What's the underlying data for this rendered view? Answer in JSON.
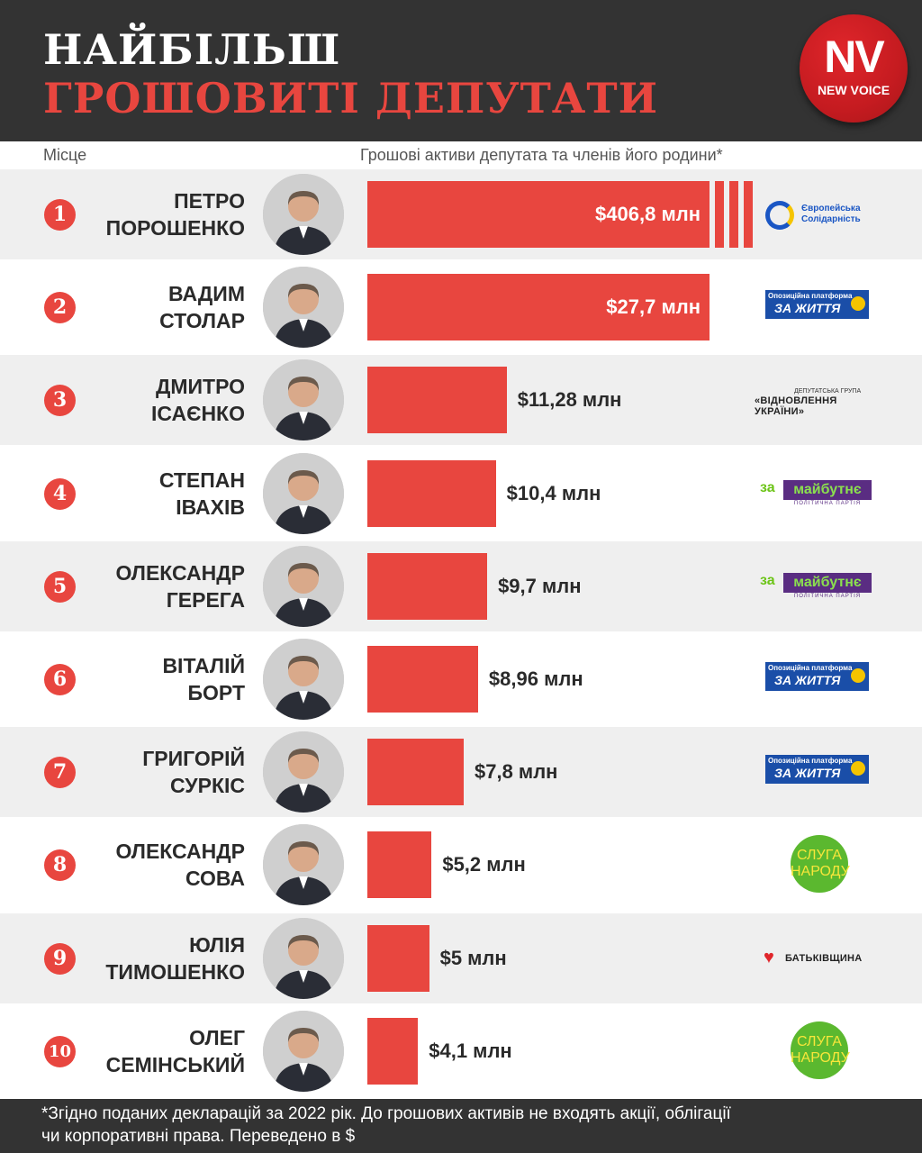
{
  "header": {
    "title_line1": "НАЙБІЛЬШ",
    "title_line2": "ГРОШОВИТІ ДЕПУТАТИ",
    "logo_main": "NV",
    "logo_sub": "NEW VOICE"
  },
  "columns": {
    "place": "Місце",
    "assets": "Грошові активи депутата та членів його родини*"
  },
  "footer": {
    "line1": "*Згідно поданих декларацій за 2022 рік. До грошових активів не входять акції, облігації",
    "line2": "чи корпоративні права. Переведено в $"
  },
  "colors": {
    "accent": "#e8463f",
    "header_bg": "#333333",
    "row_shade": "#efefef"
  },
  "party_logos": {
    "es": {
      "name_line1": "Європейська",
      "name_line2": "Солідарність"
    },
    "op": {
      "small": "Опозиційна платформа",
      "big": "ЗА ЖИТТЯ"
    },
    "vid": {
      "small": "ДЕПУТАТСЬКА ГРУПА",
      "big": "«ВІДНОВЛЕННЯ УКРАЇНИ»"
    },
    "zm": {
      "za": "за",
      "big": "майбутнє",
      "sub": "ПОЛІТИЧНА ПАРТІЯ"
    },
    "sn": {
      "line1": "СЛУГА",
      "line2": "НАРОДУ"
    },
    "bat": {
      "name": "БАТЬКІВЩИНА"
    }
  },
  "chart_data": {
    "type": "bar",
    "unit": "млн $",
    "rows": [
      {
        "rank": "1",
        "first": "ПЕТРО",
        "last": "ПОРОШЕНКО",
        "value": 406.8,
        "label": "$406,8 млн",
        "party": "es",
        "broken_axis": true
      },
      {
        "rank": "2",
        "first": "ВАДИМ",
        "last": "СТОЛАР",
        "value": 27.7,
        "label": "$27,7 млн",
        "party": "op"
      },
      {
        "rank": "3",
        "first": "ДМИТРО",
        "last": "ІСАЄНКО",
        "value": 11.28,
        "label": "$11,28 млн",
        "party": "vid"
      },
      {
        "rank": "4",
        "first": "СТЕПАН",
        "last": "ІВАХІВ",
        "value": 10.4,
        "label": "$10,4 млн",
        "party": "zm"
      },
      {
        "rank": "5",
        "first": "ОЛЕКСАНДР",
        "last": "ГЕРЕГА",
        "value": 9.7,
        "label": "$9,7 млн",
        "party": "zm"
      },
      {
        "rank": "6",
        "first": "ВІТАЛІЙ",
        "last": "БОРТ",
        "value": 8.96,
        "label": "$8,96 млн",
        "party": "op"
      },
      {
        "rank": "7",
        "first": "ГРИГОРІЙ",
        "last": "СУРКІС",
        "value": 7.8,
        "label": "$7,8 млн",
        "party": "op"
      },
      {
        "rank": "8",
        "first": "ОЛЕКСАНДР",
        "last": "СОВА",
        "value": 5.2,
        "label": "$5,2 млн",
        "party": "sn"
      },
      {
        "rank": "9",
        "first": "ЮЛІЯ",
        "last": "ТИМОШЕНКО",
        "value": 5,
        "label": "$5 млн",
        "party": "bat"
      },
      {
        "rank": "10",
        "first": "ОЛЕГ",
        "last": "СЕМІНСЬКИЙ",
        "value": 4.1,
        "label": "$4,1 млн",
        "party": "sn"
      }
    ]
  }
}
